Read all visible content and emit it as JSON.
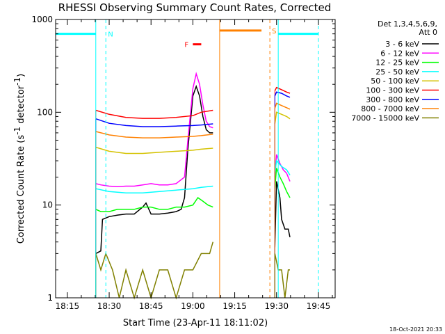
{
  "chart_data": {
    "type": "line",
    "title": "RHESSI Observing Summary Count Rates, Corrected",
    "xlabel": "Start Time (23-Apr-11 18:11:02)",
    "ylabel": "Corrected Count Rate (s⁻¹ detector⁻¹)",
    "ylabel_parts": [
      "Corrected Count Rate (s",
      "-1",
      " detector",
      "-1",
      ")"
    ],
    "yscale": "log",
    "ylim": [
      1,
      1000
    ],
    "xlim_minutes": [
      18.18,
      19.85
    ],
    "x_ticks": [
      {
        "label": "18:15",
        "value": 18.25
      },
      {
        "label": "18:30",
        "value": 18.5
      },
      {
        "label": "18:45",
        "value": 18.75
      },
      {
        "label": "19:00",
        "value": 19.0
      },
      {
        "label": "19:15",
        "value": 19.25
      },
      {
        "label": "19:30",
        "value": 19.5
      },
      {
        "label": "19:45",
        "value": 19.75
      }
    ],
    "y_ticks": [
      {
        "label": "1",
        "value": 1
      },
      {
        "label": "10",
        "value": 10
      },
      {
        "label": "100",
        "value": 100
      },
      {
        "label": "1000",
        "value": 1000
      }
    ],
    "grid": false,
    "legend_title": [
      "Det 1,3,4,5,6,9,",
      "Att 0"
    ],
    "legend_position": "right",
    "footer": "18-Oct-2021 20:33",
    "series": [
      {
        "name": "3 - 6 keV",
        "color": "#000000",
        "segments": [
          {
            "x": [
              18.42,
              18.45,
              18.46,
              18.5,
              18.55,
              18.6,
              18.65,
              18.7,
              18.72,
              18.75,
              18.8,
              18.85,
              18.9,
              18.93,
              18.95,
              18.97,
              19.0,
              19.02,
              19.04,
              19.06,
              19.08,
              19.1,
              19.12
            ],
            "y": [
              3.0,
              3.2,
              7.0,
              7.5,
              7.8,
              8.0,
              8.0,
              9.5,
              10.5,
              8.0,
              8.0,
              8.2,
              8.5,
              9.0,
              12.0,
              40.0,
              150.0,
              190.0,
              150.0,
              90.0,
              65.0,
              60.0,
              60.0
            ]
          },
          {
            "x": [
              19.49,
              19.5,
              19.52,
              19.53,
              19.55,
              19.57,
              19.58
            ],
            "y": [
              3.5,
              18.0,
              12.0,
              7.0,
              5.5,
              5.5,
              4.5
            ]
          }
        ]
      },
      {
        "name": "6 - 12 keV",
        "color": "#ff00ff",
        "segments": [
          {
            "x": [
              18.42,
              18.45,
              18.5,
              18.55,
              18.6,
              18.65,
              18.7,
              18.75,
              18.8,
              18.85,
              18.9,
              18.95,
              18.97,
              19.0,
              19.02,
              19.04,
              19.06,
              19.08,
              19.1,
              19.12
            ],
            "y": [
              17.0,
              16.5,
              16.0,
              15.8,
              16.0,
              16.0,
              16.5,
              17.0,
              16.5,
              16.5,
              17.0,
              20.0,
              50.0,
              180.0,
              260.0,
              200.0,
              120.0,
              80.0,
              70.0,
              68.0
            ]
          },
          {
            "x": [
              19.49,
              19.5,
              19.52,
              19.54,
              19.56,
              19.58
            ],
            "y": [
              20.0,
              35.0,
              28.0,
              24.0,
              22.0,
              18.0
            ]
          }
        ]
      },
      {
        "name": "12 - 25 keV",
        "color": "#00ff00",
        "segments": [
          {
            "x": [
              18.42,
              18.45,
              18.5,
              18.55,
              18.6,
              18.65,
              18.7,
              18.75,
              18.8,
              18.85,
              18.9,
              18.95,
              19.0,
              19.03,
              19.06,
              19.09,
              19.12
            ],
            "y": [
              9.0,
              8.5,
              8.5,
              9.0,
              9.0,
              9.0,
              9.5,
              9.5,
              9.0,
              9.0,
              9.5,
              9.5,
              10.0,
              12.0,
              11.0,
              10.0,
              9.5
            ]
          },
          {
            "x": [
              19.49,
              19.5,
              19.52,
              19.54,
              19.56,
              19.58
            ],
            "y": [
              15.0,
              25.0,
              20.0,
              17.0,
              14.0,
              12.0
            ]
          }
        ]
      },
      {
        "name": "25 - 50 keV",
        "color": "#00ffff",
        "segments": [
          {
            "x": [
              18.42,
              18.5,
              18.6,
              18.7,
              18.8,
              18.9,
              19.0,
              19.05,
              19.12
            ],
            "y": [
              15.0,
              14.0,
              13.5,
              13.5,
              14.0,
              14.5,
              15.0,
              15.5,
              16.0
            ]
          },
          {
            "x": [
              19.49,
              19.5,
              19.53,
              19.56,
              19.58
            ],
            "y": [
              22.0,
              30.0,
              26.0,
              24.0,
              21.0
            ]
          }
        ]
      },
      {
        "name": "50 - 100 keV",
        "color": "#d4c200",
        "segments": [
          {
            "x": [
              18.42,
              18.5,
              18.6,
              18.7,
              18.8,
              18.9,
              19.0,
              19.05,
              19.12
            ],
            "y": [
              42.0,
              38.0,
              36.0,
              36.0,
              37.0,
              38.0,
              39.0,
              40.0,
              41.0
            ]
          },
          {
            "x": [
              19.49,
              19.5,
              19.53,
              19.56,
              19.58
            ],
            "y": [
              75.0,
              100.0,
              95.0,
              90.0,
              85.0
            ]
          }
        ]
      },
      {
        "name": "100 - 300 keV",
        "color": "#ff0000",
        "segments": [
          {
            "x": [
              18.42,
              18.5,
              18.6,
              18.7,
              18.8,
              18.9,
              19.0,
              19.05,
              19.12
            ],
            "y": [
              105.0,
              95.0,
              88.0,
              86.0,
              86.0,
              88.0,
              92.0,
              100.0,
              105.0
            ]
          },
          {
            "x": [
              19.49,
              19.5,
              19.53,
              19.56,
              19.58
            ],
            "y": [
              170.0,
              185.0,
              175.0,
              165.0,
              160.0
            ]
          }
        ]
      },
      {
        "name": "300 - 800 keV",
        "color": "#0000ff",
        "segments": [
          {
            "x": [
              18.42,
              18.5,
              18.6,
              18.7,
              18.8,
              18.9,
              19.0,
              19.05,
              19.12
            ],
            "y": [
              85.0,
              76.0,
              72.0,
              70.0,
              70.0,
              71.0,
              72.0,
              73.0,
              75.0
            ]
          },
          {
            "x": [
              19.49,
              19.5,
              19.53,
              19.56,
              19.58
            ],
            "y": [
              150.0,
              165.0,
              160.0,
              150.0,
              145.0
            ]
          }
        ]
      },
      {
        "name": "800 - 7000 keV",
        "color": "#ff8000",
        "segments": [
          {
            "x": [
              18.42,
              18.5,
              18.6,
              18.7,
              18.8,
              18.9,
              19.0,
              19.05,
              19.12
            ],
            "y": [
              62.0,
              57.0,
              54.0,
              53.0,
              53.0,
              54.0,
              55.0,
              56.0,
              58.0
            ]
          },
          {
            "x": [
              19.49,
              19.5,
              19.53,
              19.56,
              19.58
            ],
            "y": [
              110.0,
              125.0,
              118.0,
              112.0,
              108.0
            ]
          }
        ]
      },
      {
        "name": "7000 - 15000 keV",
        "color": "#808000",
        "segments": [
          {
            "x": [
              18.42,
              18.45,
              18.48,
              18.52,
              18.56,
              18.6,
              18.65,
              18.7,
              18.75,
              18.8,
              18.85,
              18.9,
              18.95,
              19.0,
              19.05,
              19.1,
              19.12
            ],
            "y": [
              3.0,
              2.0,
              3.0,
              2.0,
              1.0,
              2.0,
              1.0,
              2.0,
              1.0,
              2.0,
              2.0,
              1.0,
              2.0,
              2.0,
              3.0,
              3.0,
              4.0
            ]
          },
          {
            "x": [
              19.49,
              19.51,
              19.53,
              19.55,
              19.57,
              19.58
            ],
            "y": [
              3.0,
              2.0,
              2.0,
              1.0,
              2.0,
              2.0
            ]
          }
        ]
      }
    ],
    "state_bars": [
      {
        "label": "N",
        "color": "#00ffff",
        "bar_x": [
          18.18,
          18.42
        ],
        "y": 700,
        "solid_line_x": 18.42,
        "dashed_line_x": 18.48
      },
      {
        "label": "N",
        "color": "#00ffff",
        "bar_x": [
          19.51,
          19.75
        ],
        "y": 700,
        "solid_line_x": 19.51,
        "dashed_line_x": 19.75,
        "label_shown": false
      },
      {
        "label": "S",
        "color": "#ff8000",
        "bar_x": [
          19.16,
          19.41
        ],
        "y": 760,
        "solid_line_x": 19.16,
        "dashed_line_x": 19.46
      }
    ],
    "flare_flag": {
      "label": "F",
      "color": "#ff0000",
      "bar_x": [
        19.0,
        19.05
      ],
      "y": 540
    }
  }
}
